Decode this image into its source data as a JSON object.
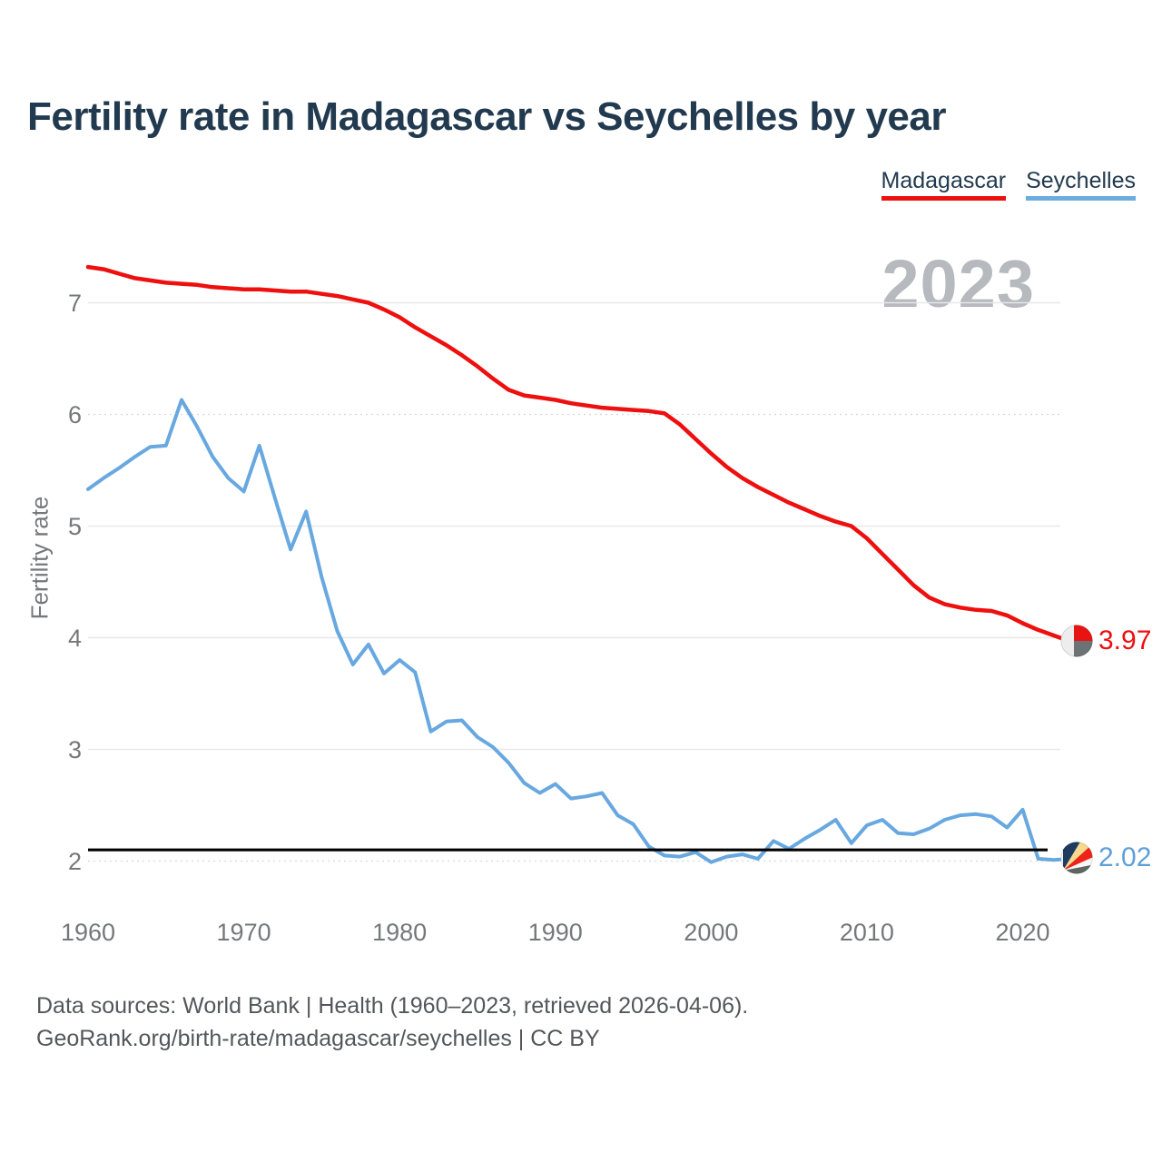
{
  "title": "Fertility rate in Madagascar vs Seychelles by year",
  "watermark": "2023",
  "colors": {
    "madagascar": "#ee0f0f",
    "seychelles": "#68a8e0",
    "title_text": "#223a4f",
    "axis_text": "#75787b",
    "gridline": "#e8e8e8",
    "gridline_dotted": "#d7d7d7",
    "reference_line": "#000000",
    "watermark": "#b6b9bd",
    "footer_text": "#53575b"
  },
  "legend": [
    {
      "label": "Madagascar",
      "color": "#ee0f0f"
    },
    {
      "label": "Seychelles",
      "color": "#6cacdf"
    }
  ],
  "y_axis": {
    "title": "Fertility rate",
    "ticks": [
      2,
      3,
      4,
      5,
      6,
      7
    ]
  },
  "x_axis": {
    "ticks": [
      1960,
      1970,
      1980,
      1990,
      2000,
      2010,
      2020
    ]
  },
  "reference_line": {
    "value": 2.1,
    "color": "#000000"
  },
  "end_labels": [
    {
      "series": "Madagascar",
      "value": "3.97",
      "color": "#ee0f0f",
      "flag": "madagascar-flag-icon"
    },
    {
      "series": "Seychelles",
      "value": "2.02",
      "color": "#5f9fd8",
      "flag": "seychelles-flag-icon"
    }
  ],
  "footer": {
    "line1": "Data sources: World Bank | Health (1960–2023, retrieved 2026-04-06).",
    "line2": "GeoRank.org/birth-rate/madagascar/seychelles | CC BY"
  },
  "chart_data": {
    "type": "line",
    "title": "Fertility rate in Madagascar vs Seychelles by year",
    "xlabel": "",
    "ylabel": "Fertility rate",
    "xlim": [
      1960,
      2023
    ],
    "ylim": [
      2,
      7
    ],
    "grid": true,
    "legend_position": "top-right",
    "annotations": [
      "2023 watermark",
      "replacement-level reference line at 2.1"
    ],
    "x": [
      1960,
      1961,
      1962,
      1963,
      1964,
      1965,
      1966,
      1967,
      1968,
      1969,
      1970,
      1971,
      1972,
      1973,
      1974,
      1975,
      1976,
      1977,
      1978,
      1979,
      1980,
      1981,
      1982,
      1983,
      1984,
      1985,
      1986,
      1987,
      1988,
      1989,
      1990,
      1991,
      1992,
      1993,
      1994,
      1995,
      1996,
      1997,
      1998,
      1999,
      2000,
      2001,
      2002,
      2003,
      2004,
      2005,
      2006,
      2007,
      2008,
      2009,
      2010,
      2011,
      2012,
      2013,
      2014,
      2015,
      2016,
      2017,
      2018,
      2019,
      2020,
      2021,
      2022,
      2023
    ],
    "series": [
      {
        "name": "Madagascar",
        "color": "#ee0f0f",
        "values": [
          7.32,
          7.3,
          7.26,
          7.22,
          7.2,
          7.18,
          7.17,
          7.16,
          7.14,
          7.13,
          7.12,
          7.12,
          7.11,
          7.1,
          7.1,
          7.08,
          7.06,
          7.03,
          7.0,
          6.94,
          6.87,
          6.78,
          6.7,
          6.62,
          6.53,
          6.43,
          6.32,
          6.22,
          6.17,
          6.15,
          6.13,
          6.1,
          6.08,
          6.06,
          6.05,
          6.04,
          6.03,
          6.01,
          5.91,
          5.78,
          5.65,
          5.53,
          5.43,
          5.35,
          5.28,
          5.21,
          5.15,
          5.09,
          5.04,
          5.0,
          4.89,
          4.75,
          4.61,
          4.47,
          4.36,
          4.3,
          4.27,
          4.25,
          4.24,
          4.2,
          4.13,
          4.07,
          4.02,
          3.97
        ]
      },
      {
        "name": "Seychelles",
        "color": "#68a8e0",
        "values": [
          5.33,
          5.43,
          5.52,
          5.62,
          5.71,
          5.72,
          6.13,
          5.89,
          5.62,
          5.43,
          5.31,
          5.72,
          5.25,
          4.79,
          5.13,
          4.54,
          4.06,
          3.76,
          3.94,
          3.68,
          3.8,
          3.69,
          3.16,
          3.25,
          3.26,
          3.11,
          3.02,
          2.88,
          2.7,
          2.61,
          2.69,
          2.56,
          2.58,
          2.61,
          2.41,
          2.33,
          2.13,
          2.05,
          2.04,
          2.08,
          1.99,
          2.04,
          2.06,
          2.02,
          2.18,
          2.11,
          2.2,
          2.28,
          2.37,
          2.16,
          2.32,
          2.37,
          2.25,
          2.24,
          2.29,
          2.37,
          2.41,
          2.42,
          2.4,
          2.3,
          2.46,
          2.02,
          2.01,
          2.02
        ]
      }
    ]
  }
}
